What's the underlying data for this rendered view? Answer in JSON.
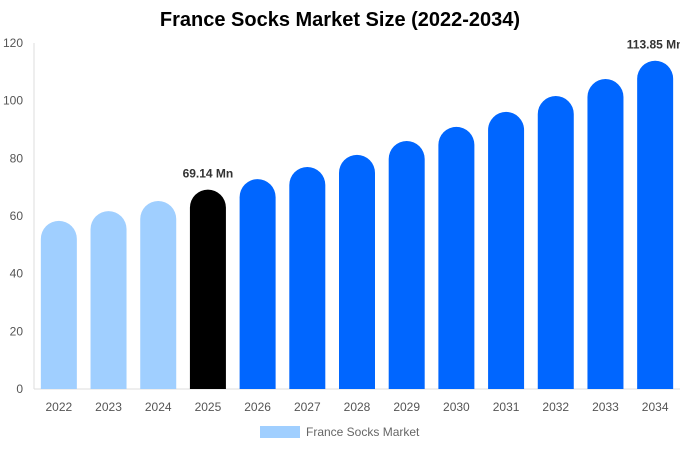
{
  "chart_data": {
    "type": "bar",
    "title": "France Socks Market Size (2022-2034)",
    "categories": [
      "2022",
      "2023",
      "2024",
      "2025",
      "2026",
      "2027",
      "2028",
      "2029",
      "2030",
      "2031",
      "2032",
      "2033",
      "2034"
    ],
    "series": [
      {
        "name": "France Socks Market",
        "values": [
          58.3,
          61.7,
          65.2,
          69.14,
          72.8,
          77.0,
          81.2,
          86.0,
          90.9,
          96.1,
          101.6,
          107.5,
          113.85
        ]
      }
    ],
    "bar_colors": [
      "#a0cfff",
      "#a0cfff",
      "#a0cfff",
      "#000000",
      "#0066ff",
      "#0066ff",
      "#0066ff",
      "#0066ff",
      "#0066ff",
      "#0066ff",
      "#0066ff",
      "#0066ff",
      "#0066ff"
    ],
    "data_labels": {
      "3": "69.14 Mn",
      "12": "113.85 Mn"
    },
    "yticks": [
      0,
      20,
      40,
      60,
      80,
      100,
      120
    ],
    "ylim": [
      0,
      120
    ],
    "xlabel": "",
    "ylabel": "",
    "grid": false,
    "legend": "bottom"
  }
}
